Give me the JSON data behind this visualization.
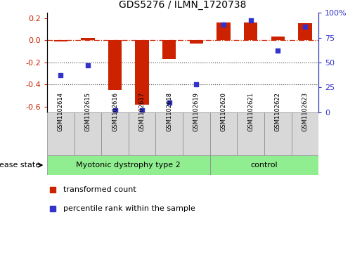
{
  "title": "GDS5276 / ILMN_1720738",
  "samples": [
    "GSM1102614",
    "GSM1102615",
    "GSM1102616",
    "GSM1102617",
    "GSM1102618",
    "GSM1102619",
    "GSM1102620",
    "GSM1102621",
    "GSM1102622",
    "GSM1102623"
  ],
  "red_values": [
    -0.01,
    0.02,
    -0.45,
    -0.58,
    -0.17,
    -0.03,
    0.16,
    0.16,
    0.035,
    0.155
  ],
  "blue_values": [
    37,
    47,
    2,
    2,
    10,
    28,
    88,
    92,
    62,
    86
  ],
  "groups": [
    {
      "label": "Myotonic dystrophy type 2",
      "start": 0,
      "end": 6,
      "color": "#90EE90"
    },
    {
      "label": "control",
      "start": 6,
      "end": 10,
      "color": "#90EE90"
    }
  ],
  "ylim_left": [
    -0.65,
    0.25
  ],
  "ylim_right": [
    0,
    100
  ],
  "left_yticks": [
    -0.6,
    -0.4,
    -0.2,
    0.0,
    0.2
  ],
  "right_yticks": [
    0,
    25,
    50,
    75,
    100
  ],
  "red_color": "#CC2200",
  "blue_color": "#3333CC",
  "hline_color": "#CC2200",
  "dotted_line_color": "#444444",
  "bar_width": 0.5,
  "disease_state_label": "disease state",
  "legend_items": [
    {
      "label": "transformed count",
      "color": "#CC2200"
    },
    {
      "label": "percentile rank within the sample",
      "color": "#3333CC"
    }
  ],
  "cell_color": "#D8D8D8",
  "cell_border_color": "#888888",
  "figsize": [
    5.15,
    3.63
  ],
  "dpi": 100
}
